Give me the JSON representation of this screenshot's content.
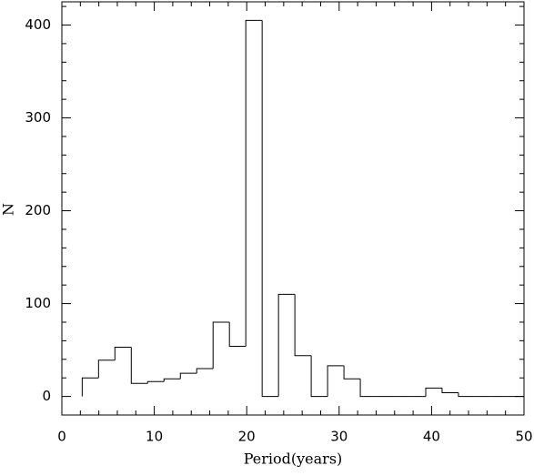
{
  "chart_data": {
    "type": "histogram",
    "xlabel": "Period(years)",
    "ylabel": "N",
    "bins": [
      2.2,
      3.97,
      5.74,
      7.51,
      9.28,
      11.05,
      12.82,
      14.59,
      16.36,
      18.13,
      19.9,
      21.67,
      23.44,
      25.21,
      26.98,
      28.75,
      30.52,
      32.29,
      34.06,
      35.83,
      37.6,
      39.37,
      41.14,
      42.91,
      44.68,
      46.45,
      48.22,
      49.99
    ],
    "values": [
      20,
      39,
      53,
      14,
      16,
      19,
      25,
      30,
      80,
      54,
      405,
      0,
      110,
      44,
      0,
      33,
      19,
      0,
      0,
      0,
      0,
      9,
      4,
      0,
      0,
      0,
      0
    ],
    "color": "#000000",
    "xlim": [
      0,
      50
    ],
    "xticks": [
      0,
      10,
      20,
      30,
      40,
      50
    ],
    "ylim": [
      -20,
      425
    ],
    "yticks": [
      0,
      100,
      200,
      300,
      400
    ]
  }
}
